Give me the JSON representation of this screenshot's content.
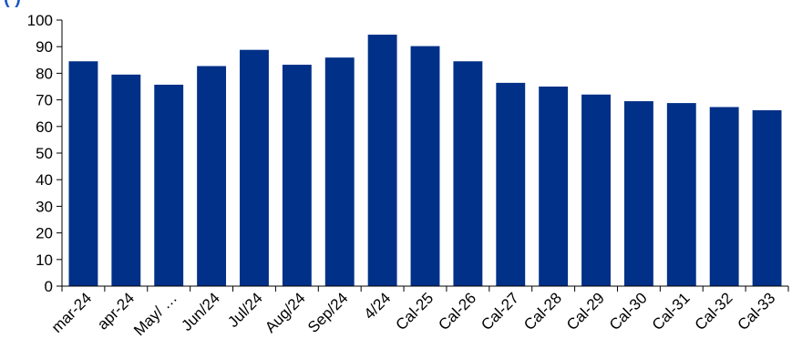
{
  "colors": {
    "bar": "#003087",
    "title": "#1f57c3",
    "axis": "#000000",
    "background": "#ffffff"
  },
  "title_fragment": "                          (                          )",
  "chart_data": {
    "type": "bar",
    "title": "",
    "xlabel": "",
    "ylabel": "",
    "ylim": [
      0,
      100
    ],
    "yticks": [
      0,
      10,
      20,
      30,
      40,
      50,
      60,
      70,
      80,
      90,
      100
    ],
    "grid": false,
    "legend": "none",
    "categories": [
      "mar-24",
      "apr-24",
      "May/ …",
      "Jun/24",
      "Jul/24",
      "Aug/24",
      "Sep/24",
      "4/24",
      "Cal-25",
      "Cal-26",
      "Cal-27",
      "Cal-28",
      "Cal-29",
      "Cal-30",
      "Cal-31",
      "Cal-32",
      "Cal-33"
    ],
    "series": [
      {
        "values": [
          84.5,
          79.5,
          75.7,
          82.7,
          88.8,
          83.2,
          85.9,
          94.5,
          90.2,
          84.5,
          76.4,
          75.0,
          72.0,
          69.5,
          68.8,
          67.3,
          66.1
        ]
      }
    ]
  }
}
